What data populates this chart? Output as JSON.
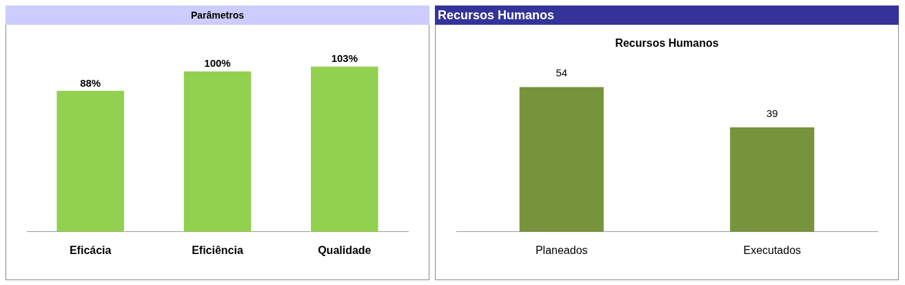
{
  "chart_data": [
    {
      "type": "bar",
      "title": "Parâmetros",
      "categories": [
        "Eficácia",
        "Eficiência",
        "Qualidade"
      ],
      "values": [
        88,
        100,
        103
      ],
      "value_labels": [
        "88%",
        "100%",
        "103%"
      ],
      "color": "#92d050"
    },
    {
      "type": "bar",
      "title": "Recursos Humanos",
      "subtitle": "Recursos Humanos",
      "categories": [
        "Planeados",
        "Executados"
      ],
      "values": [
        54,
        39
      ],
      "data_labels": true,
      "color": "#77933c"
    }
  ]
}
